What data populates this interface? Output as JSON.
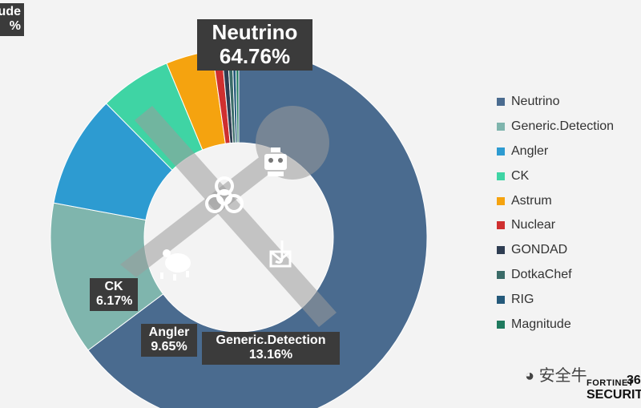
{
  "chart_data": {
    "type": "pie",
    "series": [
      {
        "name": "Neutrino",
        "value": 64.76,
        "color": "#4a6b8f"
      },
      {
        "name": "Generic.Detection",
        "value": 13.16,
        "color": "#7fb5ad"
      },
      {
        "name": "Angler",
        "value": 9.65,
        "color": "#2d9bd1"
      },
      {
        "name": "CK",
        "value": 6.17,
        "color": "#3fd4a4"
      },
      {
        "name": "Astrum",
        "value": 4.0,
        "color": "#f5a30f"
      },
      {
        "name": "Nuclear",
        "value": 0.8,
        "color": "#cf2f2f"
      },
      {
        "name": "GONDAD",
        "value": 0.5,
        "color": "#2e3d52"
      },
      {
        "name": "DotkaChef",
        "value": 0.4,
        "color": "#3a6b68"
      },
      {
        "name": "RIG",
        "value": 0.3,
        "color": "#24597a"
      },
      {
        "name": "Magnitude",
        "value": 0.26,
        "color": "#1f7a5e"
      }
    ],
    "callouts": [
      {
        "name": "Neutrino",
        "percent": "64.76%"
      },
      {
        "name": "Generic.Detection",
        "percent": "13.16%"
      },
      {
        "name": "Angler",
        "percent": "9.65%"
      },
      {
        "name": "CK",
        "percent": "6.17%"
      },
      {
        "name": "ude",
        "percent": "%"
      }
    ],
    "legend_position": "right"
  },
  "icons": [
    "wrench-icon",
    "crossed-bar-icon",
    "robot-icon",
    "biohazard-icon",
    "bug-icon",
    "phishing-hook-icon"
  ],
  "watermark": {
    "text": "安全牛",
    "icon": "wechat-icon"
  },
  "brand": {
    "fortinet": "FORTINET",
    "security": "SECURIT",
    "number": "36"
  }
}
